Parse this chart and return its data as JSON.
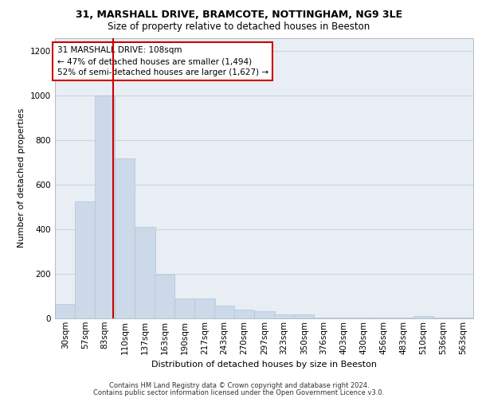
{
  "title_line1": "31, MARSHALL DRIVE, BRAMCOTE, NOTTINGHAM, NG9 3LE",
  "title_line2": "Size of property relative to detached houses in Beeston",
  "xlabel": "Distribution of detached houses by size in Beeston",
  "ylabel": "Number of detached properties",
  "footer_line1": "Contains HM Land Registry data © Crown copyright and database right 2024.",
  "footer_line2": "Contains public sector information licensed under the Open Government Licence v3.0.",
  "annotation_line1": "31 MARSHALL DRIVE: 108sqm",
  "annotation_line2": "← 47% of detached houses are smaller (1,494)",
  "annotation_line3": "52% of semi-detached houses are larger (1,627) →",
  "property_size_sqm": 108,
  "bar_color": "#ccd9e8",
  "bar_edge_color": "#b0c4d8",
  "vline_color": "#cc0000",
  "annotation_box_edgecolor": "#cc0000",
  "grid_color": "#c8d4e0",
  "bg_color": "#e8eef4",
  "categories": [
    "30sqm",
    "57sqm",
    "83sqm",
    "110sqm",
    "137sqm",
    "163sqm",
    "190sqm",
    "217sqm",
    "243sqm",
    "270sqm",
    "297sqm",
    "323sqm",
    "350sqm",
    "376sqm",
    "403sqm",
    "430sqm",
    "456sqm",
    "483sqm",
    "510sqm",
    "536sqm",
    "563sqm"
  ],
  "bin_edges": [
    30,
    57,
    83,
    110,
    137,
    163,
    190,
    217,
    243,
    270,
    297,
    323,
    350,
    376,
    403,
    430,
    456,
    483,
    510,
    536,
    563
  ],
  "bin_width": 27,
  "values": [
    65,
    525,
    1000,
    720,
    410,
    198,
    90,
    88,
    58,
    40,
    33,
    18,
    18,
    5,
    5,
    5,
    2,
    2,
    10,
    2,
    2
  ],
  "ylim": [
    0,
    1260
  ],
  "yticks": [
    0,
    200,
    400,
    600,
    800,
    1000,
    1200
  ],
  "title1_fontsize": 9,
  "title2_fontsize": 8.5,
  "ylabel_fontsize": 8,
  "xlabel_fontsize": 8,
  "tick_fontsize": 7.5,
  "footer_fontsize": 6,
  "annot_fontsize": 7.5
}
